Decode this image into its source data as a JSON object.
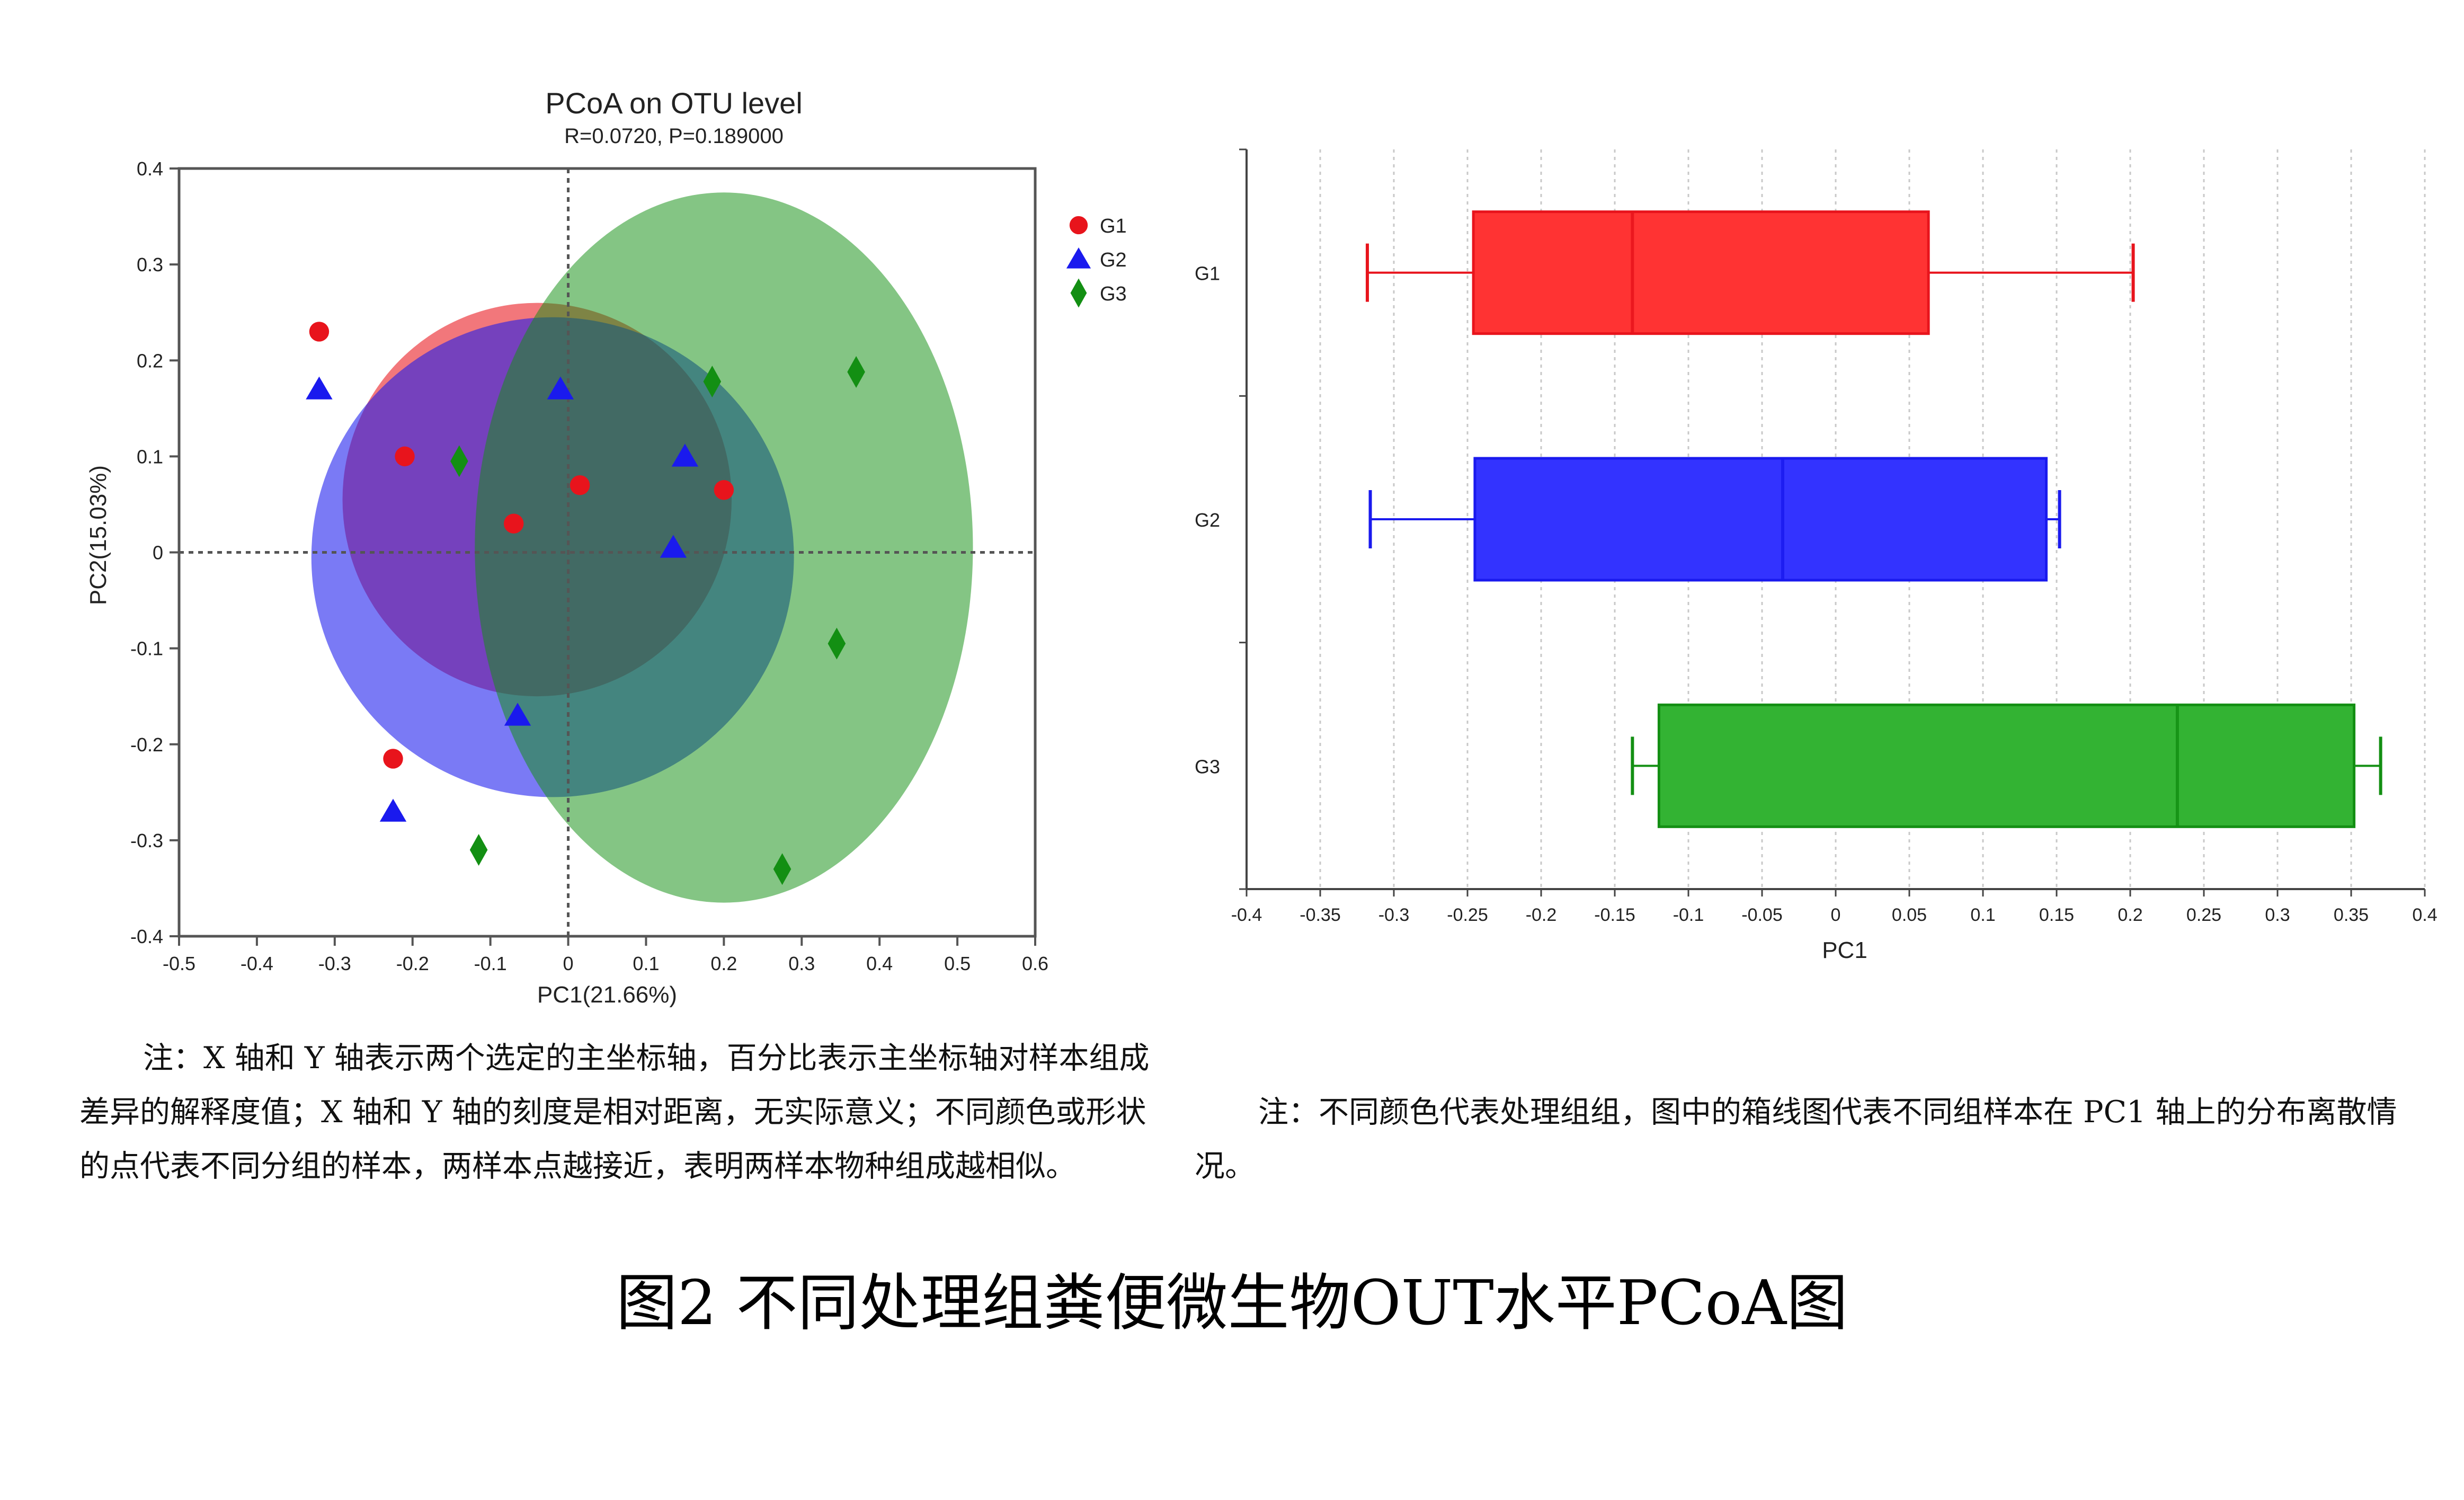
{
  "colors": {
    "G1": "#e8141c",
    "G2": "#1a1aee",
    "G3": "#138f13",
    "box_G1": "#ff3333",
    "box_G2": "#3333ff",
    "box_G3": "#33b333"
  },
  "chart_data": [
    {
      "type": "scatter",
      "title": "PCoA on OTU level",
      "subtitle": "R=0.0720, P=0.189000",
      "xlabel": "PC1(21.66%)",
      "ylabel": "PC2(15.03%)",
      "xlim": [
        -0.5,
        0.6
      ],
      "ylim": [
        -0.4,
        0.4
      ],
      "x_ticks": [
        "-0.5",
        "-0.4",
        "-0.3",
        "-0.2",
        "-0.1",
        "0",
        "0.1",
        "0.2",
        "0.3",
        "0.4",
        "0.5",
        "0.6"
      ],
      "y_ticks": [
        "0.4",
        "0.3",
        "0.2",
        "0.1",
        "0",
        "-0.1",
        "-0.2",
        "-0.3",
        "-0.4"
      ],
      "grid": false,
      "legend_position": "right",
      "series": [
        {
          "name": "G1",
          "marker": "circle",
          "points": [
            [
              -0.32,
              0.23
            ],
            [
              -0.21,
              0.1
            ],
            [
              -0.07,
              0.03
            ],
            [
              0.015,
              0.07
            ],
            [
              0.2,
              0.065
            ],
            [
              -0.225,
              -0.215
            ]
          ]
        },
        {
          "name": "G2",
          "marker": "triangle",
          "points": [
            [
              -0.32,
              0.17
            ],
            [
              -0.01,
              0.17
            ],
            [
              0.15,
              0.1
            ],
            [
              0.135,
              0.005
            ],
            [
              -0.065,
              -0.17
            ],
            [
              -0.225,
              -0.27
            ]
          ]
        },
        {
          "name": "G3",
          "marker": "diamond",
          "points": [
            [
              0.185,
              0.178
            ],
            [
              0.37,
              0.188
            ],
            [
              -0.14,
              0.095
            ],
            [
              0.345,
              -0.095
            ],
            [
              0.275,
              -0.33
            ],
            [
              -0.115,
              -0.31
            ]
          ]
        }
      ],
      "ellipses": [
        {
          "group": "G1",
          "cx": -0.04,
          "cy": 0.055,
          "rx": 0.25,
          "ry": 0.205,
          "opacity": 0.58
        },
        {
          "group": "G2",
          "cx": -0.02,
          "cy": -0.005,
          "rx": 0.31,
          "ry": 0.25,
          "opacity": 0.58
        },
        {
          "group": "G3",
          "cx": 0.2,
          "cy": 0.005,
          "rx": 0.32,
          "ry": 0.37,
          "opacity": 0.52
        }
      ]
    },
    {
      "type": "box",
      "orientation": "horizontal",
      "xlabel": "PC1",
      "xlim": [
        -0.4,
        0.4
      ],
      "x_ticks": [
        "-0.4",
        "-0.35",
        "-0.3",
        "-0.25",
        "-0.2",
        "-0.15",
        "-0.1",
        "-0.05",
        "0",
        "0.05",
        "0.1",
        "0.15",
        "0.2",
        "0.25",
        "0.3",
        "0.35",
        "0.4"
      ],
      "grid": "vertical dotted",
      "categories": [
        "G1",
        "G2",
        "G3"
      ],
      "boxes": [
        {
          "name": "G1",
          "min": -0.318,
          "q1": -0.246,
          "median": -0.138,
          "q3": 0.063,
          "max": 0.202
        },
        {
          "name": "G2",
          "min": -0.316,
          "q1": -0.245,
          "median": -0.036,
          "q3": 0.143,
          "max": 0.152
        },
        {
          "name": "G3",
          "min": -0.138,
          "q1": -0.12,
          "median": 0.232,
          "q3": 0.352,
          "max": 0.37
        }
      ]
    }
  ],
  "notes": {
    "left": "注：X 轴和 Y 轴表示两个选定的主坐标轴，百分比表示主坐标轴对样本组成差异的解释度值；X 轴和 Y 轴的刻度是相对距离，无实际意义；不同颜色或形状的点代表不同分组的样本，两样本点越接近，表明两样本物种组成越相似。",
    "right": "注：不同颜色代表处理组组，图中的箱线图代表不同组样本在 PC1 轴上的分布离散情况。"
  },
  "caption": "图2 不同处理组粪便微生物OUT水平PCoA图"
}
